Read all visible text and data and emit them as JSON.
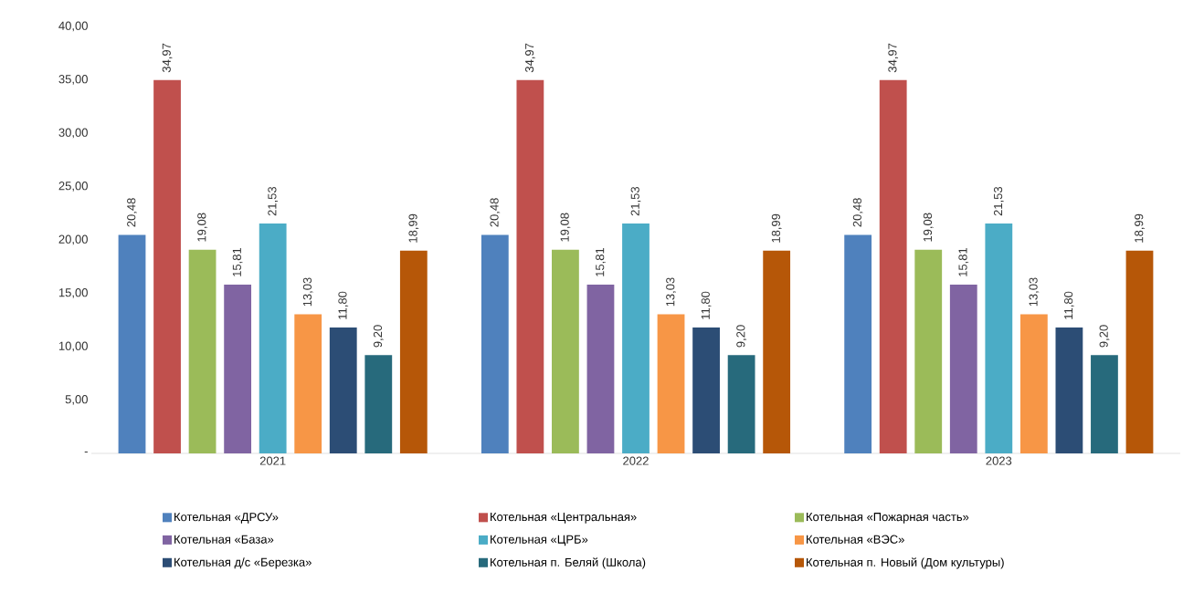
{
  "chart_data": {
    "type": "bar",
    "categories": [
      "2021",
      "2022",
      "2023"
    ],
    "series": [
      {
        "name": "Котельная «ДРСУ»",
        "color": "#4f81bd",
        "values": [
          20.48,
          20.48,
          20.48
        ],
        "value_labels": [
          "20,48",
          "20,48",
          "20,48"
        ]
      },
      {
        "name": "Котельная «Центральная»",
        "color": "#c0504d",
        "values": [
          34.97,
          34.97,
          34.97
        ],
        "value_labels": [
          "34,97",
          "34,97",
          "34,97"
        ]
      },
      {
        "name": "Котельная «Пожарная часть»",
        "color": "#9bbb59",
        "values": [
          19.08,
          19.08,
          19.08
        ],
        "value_labels": [
          "19,08",
          "19,08",
          "19,08"
        ]
      },
      {
        "name": "Котельная «База»",
        "color": "#8064a2",
        "values": [
          15.81,
          15.81,
          15.81
        ],
        "value_labels": [
          "15,81",
          "15,81",
          "15,81"
        ]
      },
      {
        "name": "Котельная «ЦРБ»",
        "color": "#4bacc6",
        "values": [
          21.53,
          21.53,
          21.53
        ],
        "value_labels": [
          "21,53",
          "21,53",
          "21,53"
        ]
      },
      {
        "name": "Котельная «ВЭС»",
        "color": "#f79646",
        "values": [
          13.03,
          13.03,
          13.03
        ],
        "value_labels": [
          "13,03",
          "13,03",
          "13,03"
        ]
      },
      {
        "name": "Котельная д/с «Березка»",
        "color": "#2c4d75",
        "values": [
          11.8,
          11.8,
          11.8
        ],
        "value_labels": [
          "11,80",
          "11,80",
          "11,80"
        ]
      },
      {
        "name": "Котельная п. Беляй (Школа)",
        "color": "#276a7c",
        "values": [
          9.2,
          9.2,
          9.2
        ],
        "value_labels": [
          "9,20",
          "9,20",
          "9,20"
        ]
      },
      {
        "name": "Котельная п. Новый (Дом культуры)",
        "color": "#b65708",
        "values": [
          18.99,
          18.99,
          18.99
        ],
        "value_labels": [
          "18,99",
          "18,99",
          "18,99"
        ]
      }
    ],
    "ylim": [
      0,
      40
    ],
    "yticks": [
      {
        "value": 0,
        "label": "-"
      },
      {
        "value": 5,
        "label": "5,00"
      },
      {
        "value": 10,
        "label": "10,00"
      },
      {
        "value": 15,
        "label": "15,00"
      },
      {
        "value": 20,
        "label": "20,00"
      },
      {
        "value": 25,
        "label": "25,00"
      },
      {
        "value": 30,
        "label": "30,00"
      },
      {
        "value": 35,
        "label": "35,00"
      },
      {
        "value": 40,
        "label": "40,00"
      }
    ],
    "legend": "bottom"
  }
}
